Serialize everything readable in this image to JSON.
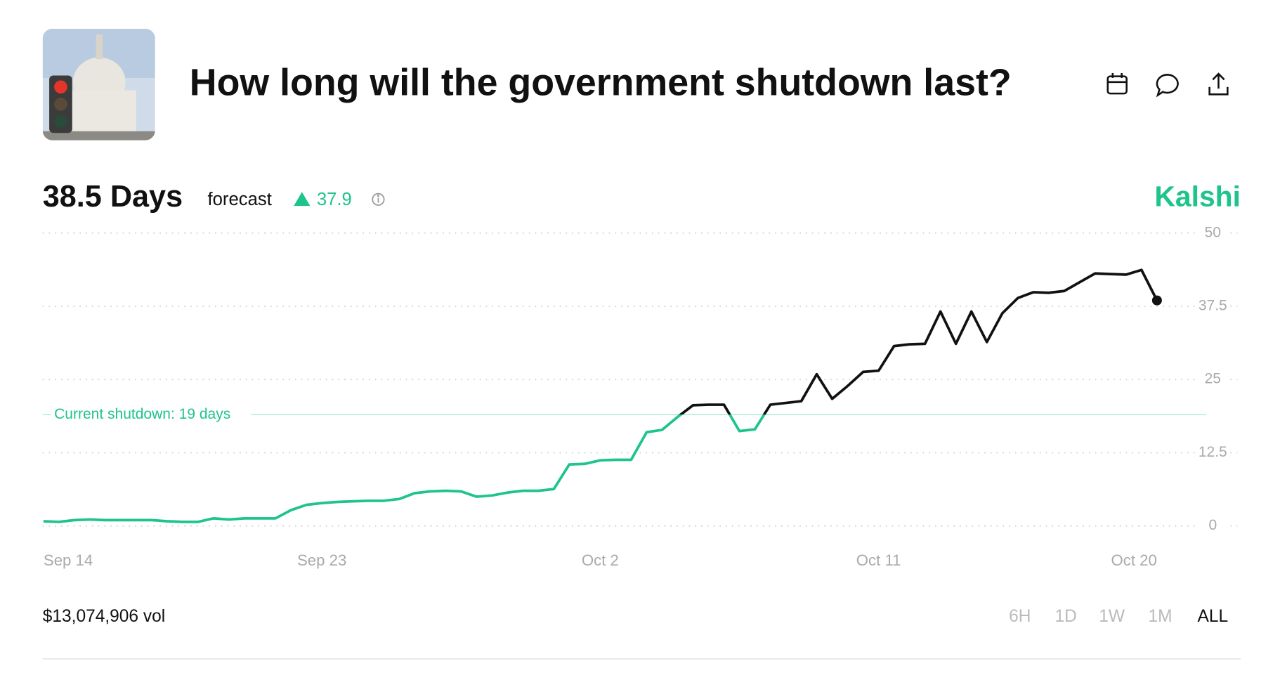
{
  "header": {
    "title": "How long will the government shutdown last?"
  },
  "forecast": {
    "value": "38.5 Days",
    "label": "forecast",
    "change": "37.9"
  },
  "brand": "Kalshi",
  "chart_data": {
    "type": "line",
    "categories": [
      "Sep 14",
      null,
      null,
      null,
      null,
      null,
      null,
      null,
      null,
      null,
      null,
      null,
      null,
      null,
      null,
      null,
      null,
      null,
      "Sep 23",
      null,
      null,
      null,
      null,
      null,
      null,
      null,
      null,
      null,
      null,
      null,
      null,
      null,
      null,
      null,
      null,
      null,
      "Oct 2",
      null,
      null,
      null,
      null,
      null,
      null,
      null,
      null,
      null,
      null,
      null,
      null,
      null,
      null,
      null,
      null,
      null,
      "Oct 11",
      null,
      null,
      null,
      null,
      null,
      null,
      null,
      null,
      null,
      null,
      null,
      null,
      null,
      null,
      null,
      null,
      null,
      "Oct 20"
    ],
    "series": [
      {
        "color": "#111111",
        "below_color": "#1fc48b",
        "values": [
          0.8,
          0.7,
          1.0,
          1.1,
          1.0,
          1.0,
          1.0,
          1.0,
          0.8,
          0.7,
          0.7,
          1.3,
          1.1,
          1.3,
          1.3,
          1.3,
          2.7,
          3.6,
          3.9,
          4.1,
          4.2,
          4.3,
          4.3,
          4.6,
          5.6,
          5.9,
          6.0,
          5.9,
          5.0,
          5.2,
          5.7,
          6.0,
          6.0,
          6.3,
          10.5,
          10.6,
          11.2,
          11.3,
          11.3,
          16.0,
          16.4,
          18.6,
          20.6,
          20.7,
          20.7,
          16.2,
          16.5,
          20.7,
          21.0,
          21.3,
          25.9,
          21.7,
          23.9,
          26.3,
          26.5,
          30.7,
          31.0,
          31.1,
          36.6,
          31.1,
          36.6,
          31.4,
          36.3,
          38.9,
          39.9,
          39.8,
          40.1,
          41.6,
          43.1,
          43.0,
          42.9,
          43.7,
          38.5
        ]
      }
    ],
    "reference_line": {
      "value": 19,
      "label": "Current shutdown: 19 days"
    },
    "ylim": [
      0,
      50
    ],
    "yticks": [
      0,
      12.5,
      25,
      37.5,
      50
    ],
    "grid": true
  },
  "footer": {
    "volume": "$13,074,906 vol",
    "ranges": [
      "6H",
      "1D",
      "1W",
      "1M",
      "ALL"
    ],
    "active_range": "ALL"
  }
}
